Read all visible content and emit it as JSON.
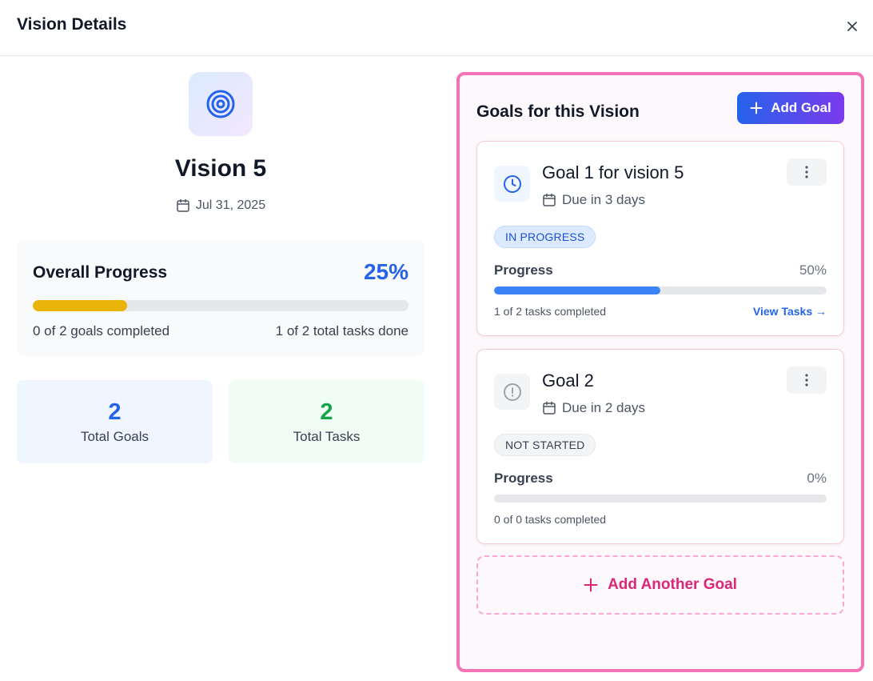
{
  "header": {
    "title": "Vision Details",
    "close_icon": "close-icon"
  },
  "vision": {
    "icon": "target-icon",
    "title": "Vision 5",
    "date": "Jul 31, 2025",
    "date_icon": "calendar-icon"
  },
  "overall_progress": {
    "title": "Overall Progress",
    "percent_label": "25%",
    "percent_value": 25,
    "bar_color": "#eab308",
    "goals_text": "0 of 2 goals completed",
    "tasks_text": "1 of 2 total tasks done"
  },
  "stats": [
    {
      "value": "2",
      "label": "Total Goals",
      "color": "#2563eb"
    },
    {
      "value": "2",
      "label": "Total Tasks",
      "color": "#16a34a"
    }
  ],
  "goals_panel": {
    "title": "Goals for this Vision",
    "add_button_label": "Add Goal",
    "add_another_label": "Add Another Goal",
    "border_color": "#f472b6"
  },
  "goals": [
    {
      "title": "Goal 1 for vision 5",
      "icon": "clock-icon",
      "due": "Due in 3 days",
      "status": "IN PROGRESS",
      "progress_label": "Progress",
      "percent_label": "50%",
      "percent_value": 50,
      "tasks_text": "1 of 2 tasks completed",
      "link_label": "View Tasks →"
    },
    {
      "title": "Goal 2",
      "icon": "alert-circle-icon",
      "due": "Due in 2 days",
      "status": "NOT STARTED",
      "progress_label": "Progress",
      "percent_label": "0%",
      "percent_value": 0,
      "tasks_text": "0 of 0 tasks completed"
    }
  ]
}
